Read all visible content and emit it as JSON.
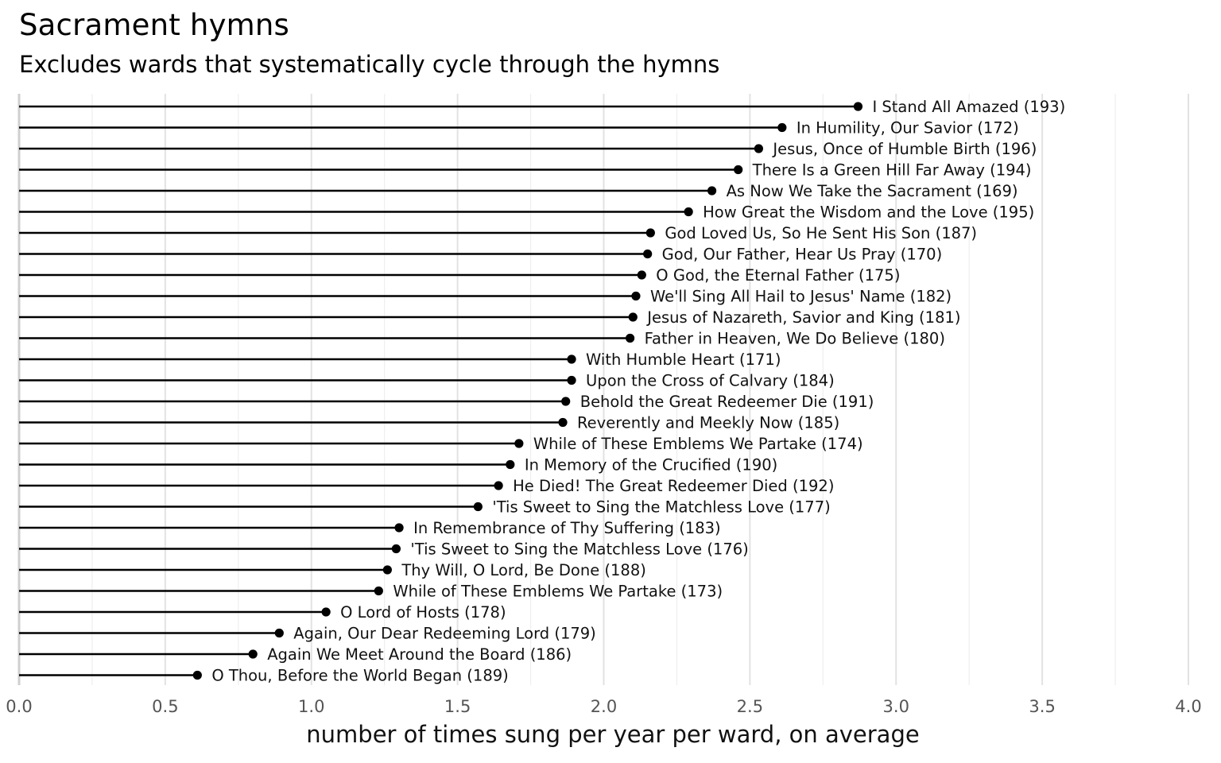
{
  "chart_data": {
    "type": "lollipop",
    "title": "Sacrament hymns",
    "subtitle": "Excludes wards that systematically cycle through the hymns",
    "xlabel": "number of times sung per year per ward, on average",
    "ylabel": "",
    "xlim": [
      0,
      4
    ],
    "xticks": [
      "0.0",
      "0.5",
      "1.0",
      "1.5",
      "2.0",
      "2.5",
      "3.0",
      "3.5",
      "4.0"
    ],
    "grid": "vertical",
    "legend": "none",
    "colors": {
      "line": "#000000",
      "point": "#000000",
      "grid": "#e2e2e2"
    },
    "items": [
      {
        "label": "I Stand All Amazed (193)",
        "value": 2.87
      },
      {
        "label": "In Humility, Our Savior (172)",
        "value": 2.61
      },
      {
        "label": "Jesus, Once of Humble Birth (196)",
        "value": 2.53
      },
      {
        "label": "There Is a Green Hill Far Away (194)",
        "value": 2.46
      },
      {
        "label": "As Now We Take the Sacrament (169)",
        "value": 2.37
      },
      {
        "label": "How Great the Wisdom and the Love (195)",
        "value": 2.29
      },
      {
        "label": "God Loved Us, So He Sent His Son (187)",
        "value": 2.16
      },
      {
        "label": "God, Our Father, Hear Us Pray (170)",
        "value": 2.15
      },
      {
        "label": "O God, the Eternal Father (175)",
        "value": 2.13
      },
      {
        "label": "We'll Sing All Hail to Jesus' Name (182)",
        "value": 2.11
      },
      {
        "label": "Jesus of Nazareth, Savior and King (181)",
        "value": 2.1
      },
      {
        "label": "Father in Heaven, We Do Believe (180)",
        "value": 2.09
      },
      {
        "label": "With Humble Heart (171)",
        "value": 1.89
      },
      {
        "label": "Upon the Cross of Calvary (184)",
        "value": 1.89
      },
      {
        "label": "Behold the Great Redeemer Die (191)",
        "value": 1.87
      },
      {
        "label": "Reverently and Meekly Now (185)",
        "value": 1.86
      },
      {
        "label": "While of These Emblems We Partake (174)",
        "value": 1.71
      },
      {
        "label": "In Memory of the Crucified (190)",
        "value": 1.68
      },
      {
        "label": "He Died! The Great Redeemer Died (192)",
        "value": 1.64
      },
      {
        "label": "'Tis Sweet to Sing the Matchless Love (177)",
        "value": 1.57
      },
      {
        "label": "In Remembrance of Thy Suffering (183)",
        "value": 1.3
      },
      {
        "label": "'Tis Sweet to Sing the Matchless Love (176)",
        "value": 1.29
      },
      {
        "label": "Thy Will, O Lord, Be Done (188)",
        "value": 1.26
      },
      {
        "label": "While of These Emblems We Partake (173)",
        "value": 1.23
      },
      {
        "label": "O Lord of Hosts (178)",
        "value": 1.05
      },
      {
        "label": "Again, Our Dear Redeeming Lord (179)",
        "value": 0.89
      },
      {
        "label": "Again We Meet Around the Board (186)",
        "value": 0.8
      },
      {
        "label": "O Thou, Before the World Began (189)",
        "value": 0.61
      }
    ]
  }
}
